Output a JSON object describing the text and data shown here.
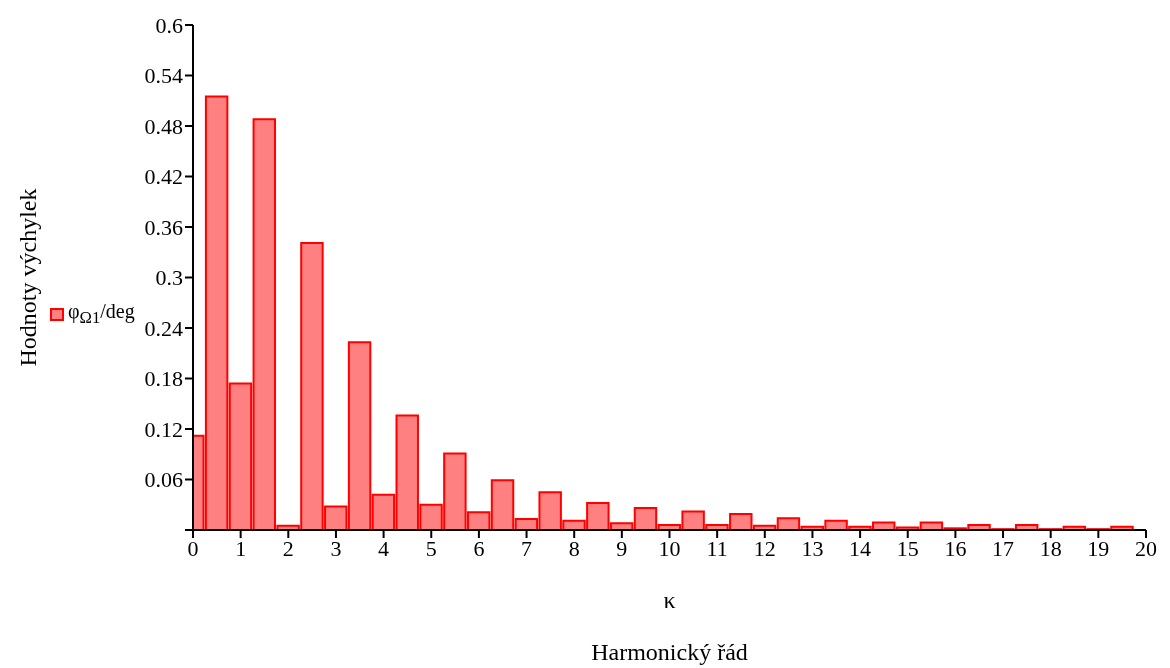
{
  "chart_data": {
    "type": "bar",
    "ylabel": "Hodnoty výchylek",
    "xlabel": "κ\nHarmonický řád",
    "x": [
      0,
      0.5,
      1,
      1.5,
      2,
      2.5,
      3,
      3.5,
      4,
      4.5,
      5,
      5.5,
      6,
      6.5,
      7,
      7.5,
      8,
      8.5,
      9,
      9.5,
      10,
      10.5,
      11,
      11.5,
      12,
      12.5,
      13,
      13.5,
      14,
      14.5,
      15,
      15.5,
      16,
      16.5,
      17,
      17.5,
      18,
      18.5,
      19,
      19.5
    ],
    "series": [
      {
        "name": "φ$_{Ω1}$/deg",
        "color": "#ff8080",
        "values": [
          0.112,
          0.515,
          0.174,
          0.488,
          0.005,
          0.341,
          0.028,
          0.223,
          0.042,
          0.136,
          0.03,
          0.091,
          0.021,
          0.059,
          0.013,
          0.045,
          0.011,
          0.032,
          0.008,
          0.026,
          0.006,
          0.022,
          0.006,
          0.019,
          0.005,
          0.014,
          0.004,
          0.011,
          0.004,
          0.009,
          0.003,
          0.009,
          0.002,
          0.006,
          0.001,
          0.006,
          0.001,
          0.004,
          0.001,
          0.004
        ]
      }
    ],
    "xlim": [
      0,
      20
    ],
    "xticks": [
      0,
      1,
      2,
      3,
      4,
      5,
      6,
      7,
      8,
      9,
      10,
      11,
      12,
      13,
      14,
      15,
      16,
      17,
      18,
      19,
      20
    ],
    "ylim": [
      0,
      0.6
    ],
    "yticks": [
      {
        "value": 0,
        "label": null
      },
      0.06,
      0.12,
      0.18,
      0.24,
      0.3,
      0.36,
      0.42,
      0.48,
      0.54,
      0.6
    ],
    "legend": "left",
    "grid": false
  }
}
